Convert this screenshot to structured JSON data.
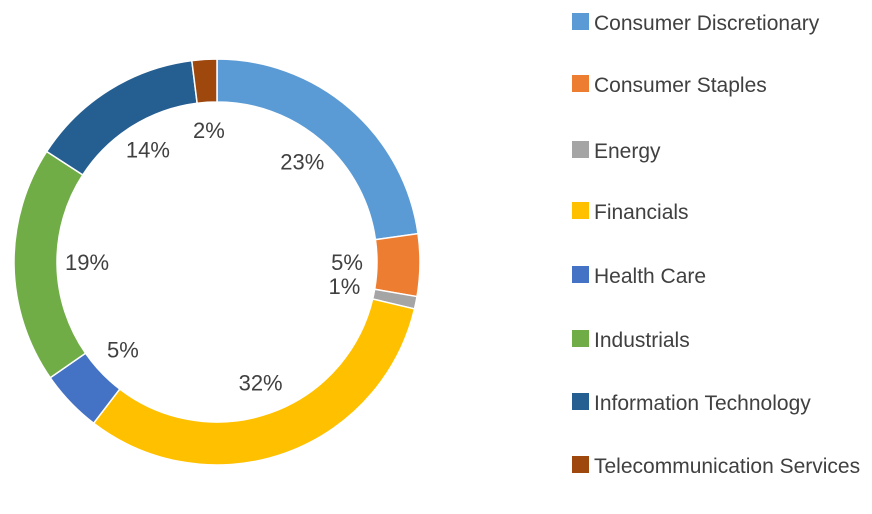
{
  "chart_data": {
    "type": "donut",
    "categories": [
      "Consumer Discretionary",
      "Consumer Staples",
      "Energy",
      "Financials",
      "Health Care",
      "Industrials",
      "Information Technology",
      "Telecommunication Services"
    ],
    "values": [
      23,
      5,
      1,
      32,
      5,
      19,
      14,
      2
    ],
    "value_labels": [
      "23%",
      "5%",
      "1%",
      "32%",
      "5%",
      "19%",
      "14%",
      "2%"
    ],
    "colors": [
      "#5b9bd5",
      "#ed7d31",
      "#a5a5a5",
      "#ffc000",
      "#4472c4",
      "#70ad47",
      "#255e91",
      "#9e480e"
    ],
    "legend": "right"
  }
}
